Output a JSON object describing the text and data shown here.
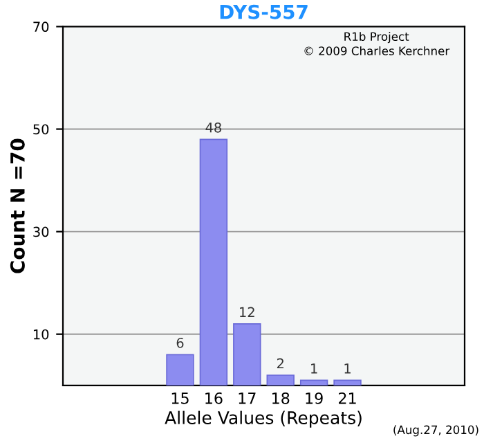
{
  "chart_data": {
    "type": "bar",
    "title": "DYS-557",
    "xlabel": "Allele Values (Repeats)",
    "ylabel": "Count N =70",
    "categories": [
      null,
      null,
      null,
      "15",
      "16",
      "17",
      "18",
      "19",
      "21",
      null,
      null,
      null
    ],
    "values": [
      null,
      null,
      null,
      6,
      48,
      12,
      2,
      1,
      1,
      null,
      null,
      null
    ],
    "color": "#8c8cf0",
    "ylim": [
      0,
      70
    ],
    "yticks": [
      10,
      30,
      50,
      70
    ],
    "grid": "y",
    "data_labels": true,
    "annotations": [
      "R1b Project",
      "© 2009 Charles Kerchner",
      "(Aug.27, 2010)"
    ]
  }
}
